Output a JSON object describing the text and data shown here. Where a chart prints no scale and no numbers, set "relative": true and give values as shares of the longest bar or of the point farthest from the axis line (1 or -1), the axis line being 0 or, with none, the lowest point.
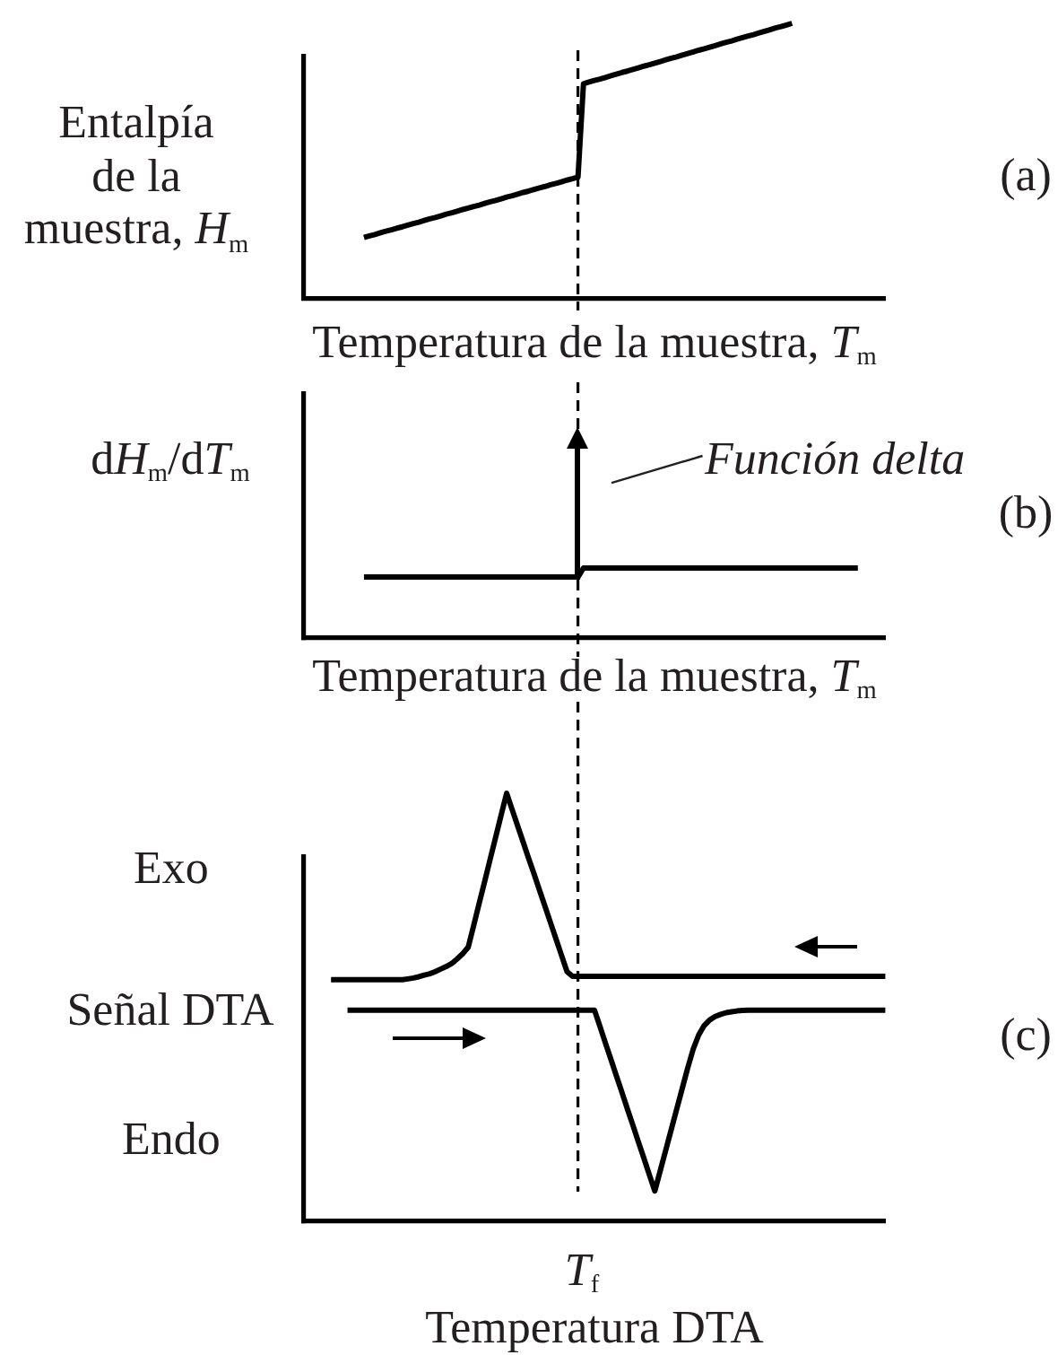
{
  "chart_data": [
    {
      "type": "line",
      "relative": true,
      "xlabel": "Temperatura de la muestra, T$_{m}$",
      "ylabel": "Entalpía\nde la\nmuestra, H$_{m}$",
      "annotations": [
        "(a)"
      ],
      "categories": [
        null,
        null,
        null,
        null,
        null,
        null,
        null,
        null,
        null,
        null,
        null,
        null,
        null,
        null,
        null,
        null,
        null,
        null,
        null,
        null,
        null,
        null,
        null,
        null,
        null,
        null,
        null,
        null,
        null,
        null,
        null,
        null,
        null,
        null,
        null,
        null,
        null,
        null,
        null,
        null,
        null,
        null,
        null,
        null,
        null,
        null,
        null,
        null,
        null,
        null,
        null,
        null,
        null,
        null,
        null,
        null,
        null,
        null,
        null,
        null,
        null,
        null,
        null,
        null,
        null,
        null,
        null,
        null,
        null,
        null,
        null,
        null,
        null,
        null,
        null,
        null,
        null,
        null,
        null,
        null,
        null,
        null,
        null,
        null,
        null,
        null,
        null,
        null,
        null,
        null,
        null,
        null,
        null,
        null,
        null,
        null,
        null,
        null,
        null,
        null,
        null,
        null,
        null,
        null,
        null,
        null,
        null
      ],
      "series": [
        {
          "color": "#000000",
          "values": [
            null,
            null,
            null,
            null,
            null,
            null,
            null,
            null,
            null,
            null,
            null,
            0.22,
            0.226,
            0.231,
            0.237,
            0.243,
            0.248,
            0.254,
            0.259,
            0.265,
            0.271,
            0.276,
            0.282,
            0.288,
            0.293,
            0.299,
            0.305,
            0.31,
            0.316,
            0.322,
            0.327,
            0.333,
            0.338,
            0.344,
            0.35,
            0.355,
            0.361,
            0.367,
            0.372,
            0.378,
            0.384,
            0.389,
            0.395,
            0.401,
            0.406,
            0.412,
            0.417,
            0.423,
            0.429,
            0.434,
            0.44,
            0.78,
            0.786,
            0.792,
            0.797,
            0.803,
            0.809,
            0.815,
            0.821,
            0.826,
            0.832,
            0.838,
            0.844,
            0.849,
            0.855,
            0.861,
            0.867,
            0.873,
            0.878,
            0.884,
            0.89,
            0.896,
            0.902,
            0.907,
            0.913,
            0.919,
            0.925,
            0.931,
            0.936,
            0.942,
            0.948,
            0.954,
            0.959,
            0.965,
            0.971,
            0.977,
            0.983,
            0.988,
            0.994,
            1,
            null,
            null,
            null,
            null,
            null,
            null,
            null,
            null,
            null,
            null,
            null,
            null,
            null,
            null,
            null,
            null,
            null
          ]
        }
      ]
    },
    {
      "type": "line",
      "relative": true,
      "xlabel": "Temperatura de la muestra, T$_{m}$",
      "ylabel": "dH$_{m}$/dT$_{m}$",
      "annotations": [
        "Función delta",
        "(b)"
      ],
      "categories": [
        null,
        null,
        null,
        null,
        null,
        null,
        null,
        null,
        null,
        null,
        null,
        null,
        null,
        null,
        null,
        null,
        null,
        null,
        null,
        null,
        null,
        null,
        null,
        null,
        null,
        null,
        null,
        null,
        null,
        null,
        null,
        null,
        null,
        null,
        null,
        null,
        null,
        null,
        null,
        null,
        null,
        null,
        null,
        null,
        null,
        null,
        null,
        null,
        null,
        null,
        null,
        null,
        null,
        null,
        null,
        null,
        null,
        null,
        null,
        null,
        null,
        null,
        null,
        null,
        null,
        null,
        null,
        null,
        null,
        null,
        null,
        null,
        null,
        null,
        null,
        null,
        null,
        null,
        null,
        null,
        null,
        null,
        null,
        null,
        null,
        null,
        null,
        null,
        null,
        null,
        null,
        null,
        null,
        null,
        null,
        null,
        null,
        null,
        null,
        null,
        null,
        null,
        null,
        null,
        null,
        null,
        null
      ],
      "series": [
        {
          "color": "#000000",
          "values": [
            null,
            null,
            null,
            null,
            null,
            null,
            null,
            null,
            null,
            null,
            null,
            0.87,
            0.87,
            0.87,
            0.87,
            0.87,
            0.87,
            0.87,
            0.87,
            0.87,
            0.87,
            0.87,
            0.87,
            0.87,
            0.87,
            0.87,
            0.87,
            0.87,
            0.87,
            0.87,
            0.87,
            0.87,
            0.87,
            0.87,
            0.87,
            0.87,
            0.87,
            0.87,
            0.87,
            0.87,
            0.87,
            0.87,
            0.87,
            0.87,
            0.87,
            0.87,
            0.87,
            0.87,
            0.87,
            0.87,
            0.87,
            1,
            1,
            1,
            1,
            1,
            1,
            1,
            1,
            1,
            1,
            1,
            1,
            1,
            1,
            1,
            1,
            1,
            1,
            1,
            1,
            1,
            1,
            1,
            1,
            1,
            1,
            1,
            1,
            1,
            1,
            1,
            1,
            1,
            1,
            1,
            1,
            1,
            1,
            1,
            1,
            1,
            1,
            1,
            1,
            1,
            1,
            1,
            1,
            1,
            1,
            1,
            null,
            null,
            null,
            null,
            null
          ]
        }
      ]
    },
    {
      "type": "line",
      "relative": true,
      "xlabel": "Temperatura DTA",
      "ylabel": "Señal DTA",
      "annotations": [
        "Exo",
        "Endo",
        "T$_{f}$",
        "(c)"
      ],
      "categories": [
        null,
        null,
        null,
        null,
        null,
        null,
        null,
        null,
        null,
        null,
        null,
        null,
        null,
        null,
        null,
        null,
        null,
        null,
        null,
        null,
        null,
        null,
        null,
        null,
        null,
        null,
        null,
        null,
        null,
        null,
        null,
        null,
        null,
        null,
        null,
        null,
        null,
        null,
        null,
        null,
        null,
        null,
        null,
        null,
        null,
        null,
        null,
        null,
        null,
        null,
        null,
        null,
        null,
        null,
        null,
        null,
        null,
        null,
        null,
        null,
        null,
        null,
        null,
        null,
        null,
        null,
        null,
        null,
        null,
        null,
        null,
        null,
        null,
        null,
        null,
        null,
        null,
        null,
        null,
        null,
        null,
        null,
        null,
        null,
        null,
        null,
        null,
        null,
        null,
        null,
        null,
        null,
        null,
        null,
        null,
        null,
        null,
        null,
        null,
        null,
        null,
        null,
        null,
        null,
        null,
        null,
        null
      ],
      "series": [
        {
          "color": "#000000",
          "values": [
            null,
            null,
            null,
            null,
            null,
            0.564,
            0.564,
            0.564,
            0.564,
            0.564,
            0.564,
            0.564,
            0.564,
            0.564,
            0.564,
            0.564,
            0.564,
            0.564,
            0.564,
            0.566,
            0.568,
            0.571,
            0.575,
            0.578,
            0.583,
            0.589,
            0.595,
            0.602,
            0.613,
            0.625,
            0.64,
            0.691,
            0.743,
            0.794,
            0.846,
            0.897,
            0.949,
            1,
            0.962,
            0.924,
            0.886,
            0.848,
            0.811,
            0.773,
            0.735,
            0.697,
            0.659,
            0.621,
            0.583,
            0.572,
            0.572,
            0.572,
            0.572,
            0.572,
            0.572,
            0.572,
            0.572,
            0.572,
            0.572,
            0.572,
            0.572,
            0.572,
            0.572,
            0.572,
            0.572,
            0.572,
            0.572,
            0.572,
            0.572,
            0.572,
            0.572,
            0.572,
            0.572,
            0.572,
            0.572,
            0.572,
            0.572,
            0.572,
            0.572,
            0.572,
            0.572,
            0.572,
            0.572,
            0.572,
            0.572,
            0.572,
            0.572,
            0.572,
            0.572,
            0.572,
            0.572,
            0.572,
            0.572,
            0.572,
            0.572,
            0.572,
            0.572,
            0.572,
            0.572,
            0.572,
            0.572,
            0.572,
            0.572,
            0.572,
            0.572,
            0.572,
            0.572
          ]
        },
        {
          "color": "#000000",
          "values": [
            null,
            null,
            null,
            null,
            null,
            null,
            null,
            null,
            0.493,
            0.493,
            0.493,
            0.493,
            0.493,
            0.493,
            0.493,
            0.493,
            0.493,
            0.493,
            0.493,
            0.493,
            0.493,
            0.493,
            0.493,
            0.493,
            0.493,
            0.493,
            0.493,
            0.493,
            0.493,
            0.493,
            0.493,
            0.493,
            0.493,
            0.493,
            0.493,
            0.493,
            0.493,
            0.493,
            0.493,
            0.493,
            0.493,
            0.493,
            0.493,
            0.493,
            0.493,
            0.493,
            0.493,
            0.493,
            0.493,
            0.493,
            0.493,
            0.493,
            0.493,
            0.493,
            0.455,
            0.416,
            0.378,
            0.339,
            0.301,
            0.262,
            0.224,
            0.185,
            0.147,
            0.108,
            0.07,
            0.118,
            0.166,
            0.214,
            0.262,
            0.31,
            0.358,
            0.402,
            0.435,
            0.457,
            0.47,
            0.478,
            0.483,
            0.487,
            0.489,
            0.491,
            0.492,
            0.493,
            0.493,
            0.493,
            0.493,
            0.493,
            0.493,
            0.493,
            0.493,
            0.493,
            0.493,
            0.493,
            0.493,
            0.493,
            0.493,
            0.493,
            0.493,
            0.493,
            0.493,
            0.493,
            0.493,
            0.493,
            0.493,
            0.493,
            0.493,
            0.493,
            0.493
          ]
        }
      ]
    }
  ]
}
